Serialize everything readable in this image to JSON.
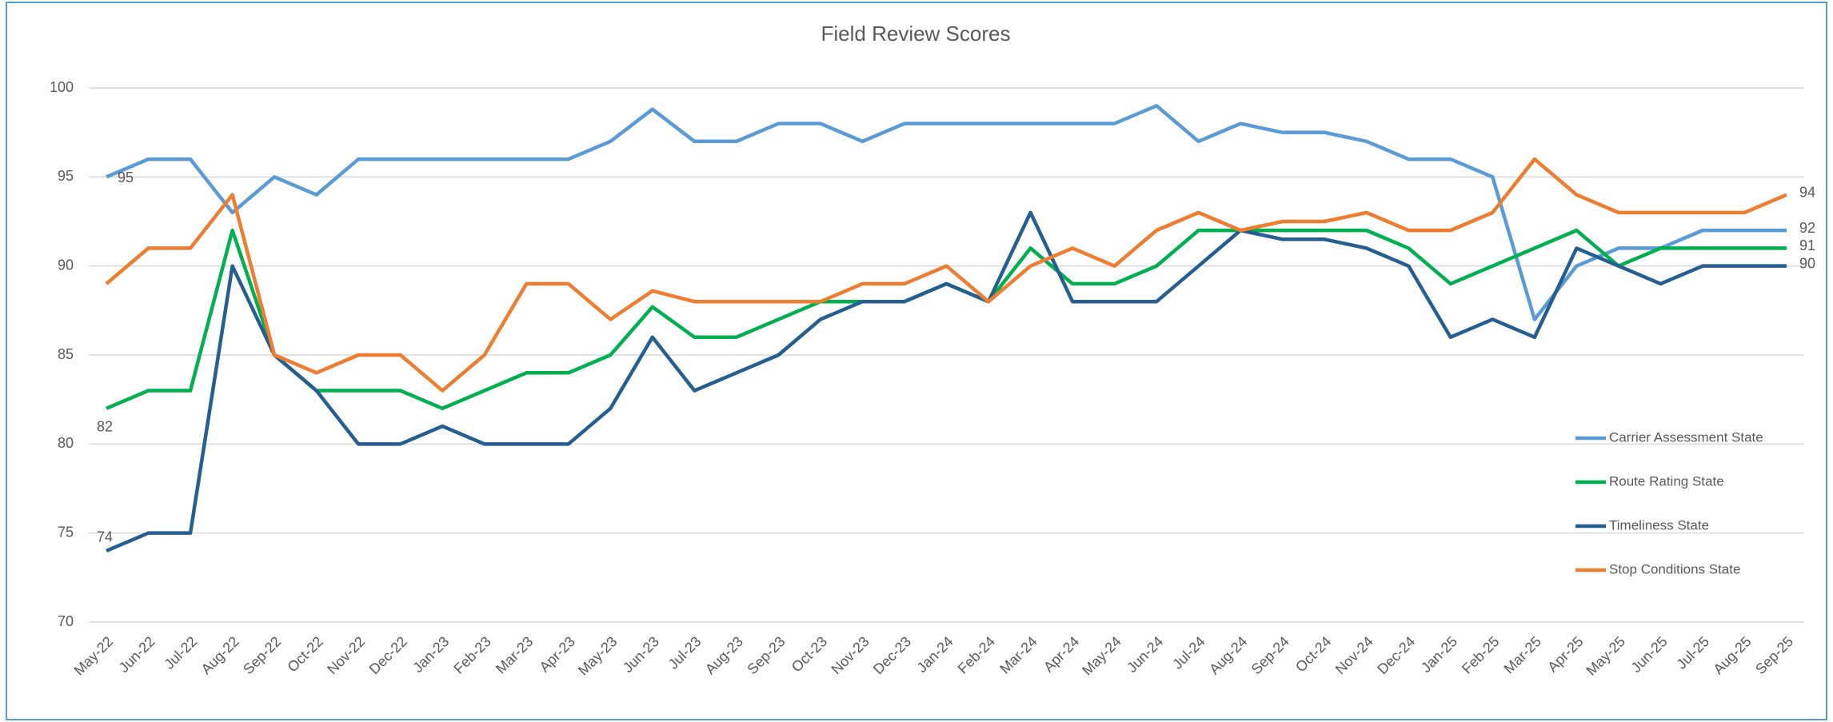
{
  "chart_data": {
    "type": "line",
    "title": "Field Review Scores",
    "categories": [
      "May-22",
      "Jun-22",
      "Jul-22",
      "Aug-22",
      "Sep-22",
      "Oct-22",
      "Nov-22",
      "Dec-22",
      "Jan-23",
      "Feb-23",
      "Mar-23",
      "Apr-23",
      "May-23",
      "Jun-23",
      "Jul-23",
      "Aug-23",
      "Sep-23",
      "Oct-23",
      "Nov-23",
      "Dec-23",
      "Jan-24",
      "Feb-24",
      "Mar-24",
      "Apr-24",
      "May-24",
      "Jun-24",
      "Jul-24",
      "Aug-24",
      "Sep-24",
      "Oct-24",
      "Nov-24",
      "Dec-24",
      "Jan-25",
      "Feb-25",
      "Mar-25",
      "Apr-25",
      "May-25",
      "Jun-25",
      "Jul-25",
      "Aug-25",
      "Sep-25"
    ],
    "series": [
      {
        "name": "Carrier Assessment State",
        "color": "#5b9bd5",
        "values": [
          95,
          96,
          96,
          93,
          95,
          94,
          96,
          96,
          96,
          96,
          96,
          96,
          97,
          98.8,
          97,
          97,
          98,
          98,
          97,
          98,
          98,
          98,
          98,
          98,
          98,
          99,
          97,
          98,
          97.5,
          97.5,
          97,
          96,
          96,
          95,
          87,
          90,
          91,
          91,
          92,
          92,
          92
        ]
      },
      {
        "name": "Route Rating State",
        "color": "#00b050",
        "values": [
          82,
          83,
          83,
          92,
          85,
          83,
          83,
          83,
          82,
          83,
          84,
          84,
          85,
          87.7,
          86,
          86,
          87,
          88,
          88,
          88,
          89,
          88,
          91,
          89,
          89,
          90,
          92,
          92,
          92,
          92,
          92,
          91,
          89,
          90,
          91,
          92,
          90,
          91,
          91,
          91,
          91
        ]
      },
      {
        "name": "Timeliness State",
        "color": "#255e91",
        "values": [
          74,
          75,
          75,
          90,
          85,
          83,
          80,
          80,
          81,
          80,
          80,
          80,
          82,
          86,
          83,
          84,
          85,
          87,
          88,
          88,
          89,
          88,
          93,
          88,
          88,
          88,
          90,
          92,
          91.5,
          91.5,
          91,
          90,
          86,
          87,
          86,
          91,
          90,
          89,
          90,
          90,
          90
        ]
      },
      {
        "name": "Stop Conditions State",
        "color": "#ed7d31",
        "values": [
          89,
          91,
          91,
          94,
          85,
          84,
          85,
          85,
          83,
          85,
          89,
          89,
          87,
          88.6,
          88,
          88,
          88,
          88,
          89,
          89,
          90,
          88,
          90,
          91,
          90,
          92,
          93,
          92,
          92.5,
          92.5,
          93,
          92,
          92,
          93,
          96,
          94,
          93,
          93,
          93,
          93,
          94
        ]
      }
    ],
    "ylim": [
      70,
      100
    ],
    "yticks": [
      70,
      75,
      80,
      85,
      90,
      95,
      100
    ],
    "grid": true,
    "legend": "right"
  }
}
